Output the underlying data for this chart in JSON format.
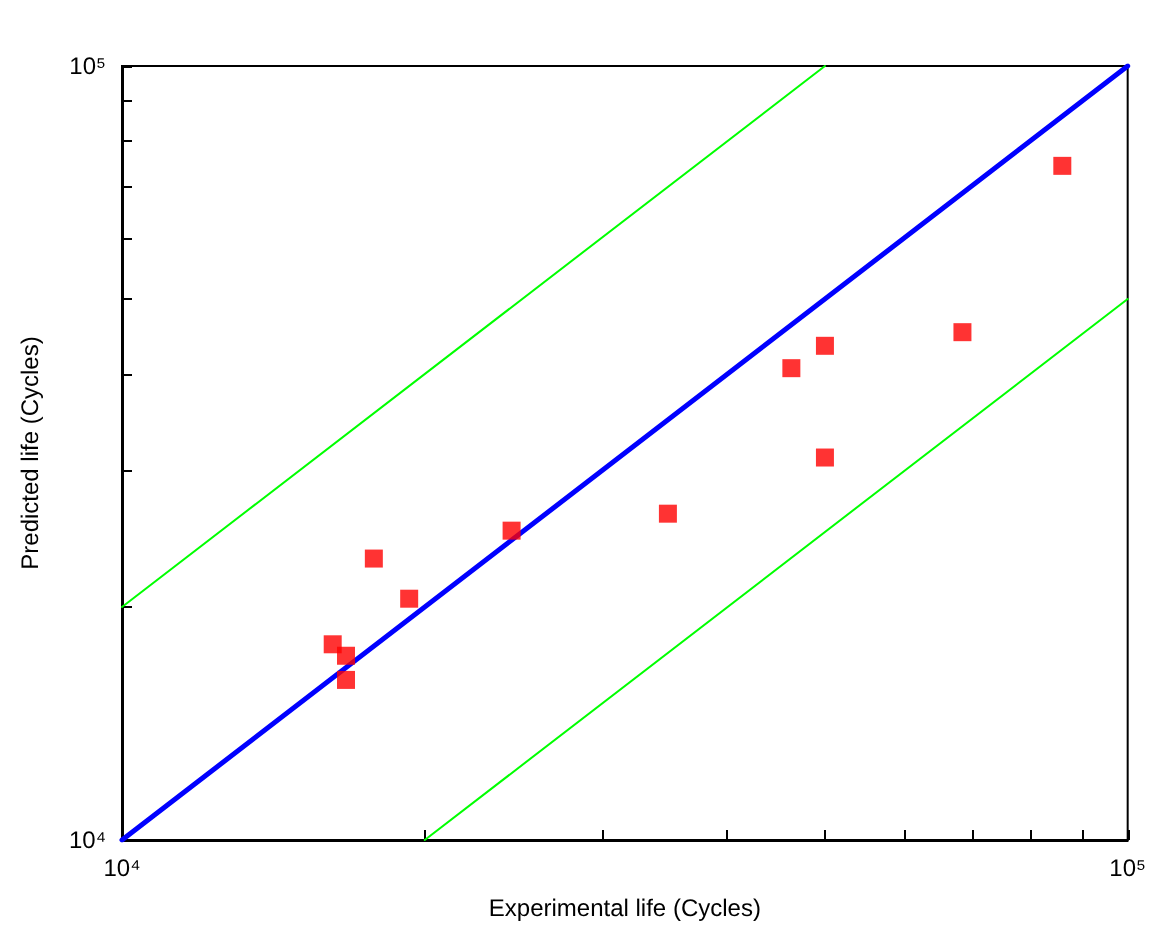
{
  "chart_data": {
    "type": "scatter",
    "xlabel": "Experimental life (Cycles)",
    "ylabel": "Predicted life (Cycles)",
    "log": "xy",
    "grid": false,
    "xlim": [
      10000,
      100000
    ],
    "ylim": [
      10000,
      100000
    ],
    "xticks": [
      {
        "value": 10000,
        "label": "10⁴"
      },
      {
        "value": 20000,
        "label": null
      },
      {
        "value": 30000,
        "label": null
      },
      {
        "value": 40000,
        "label": null
      },
      {
        "value": 50000,
        "label": null
      },
      {
        "value": 60000,
        "label": null
      },
      {
        "value": 70000,
        "label": null
      },
      {
        "value": 80000,
        "label": null
      },
      {
        "value": 90000,
        "label": null
      },
      {
        "value": 100000,
        "label": "10⁵"
      }
    ],
    "yticks": [
      {
        "value": 10000,
        "label": "10⁴"
      },
      {
        "value": 20000,
        "label": null
      },
      {
        "value": 30000,
        "label": null
      },
      {
        "value": 40000,
        "label": null
      },
      {
        "value": 50000,
        "label": null
      },
      {
        "value": 60000,
        "label": null
      },
      {
        "value": 70000,
        "label": null
      },
      {
        "value": 80000,
        "label": null
      },
      {
        "value": 90000,
        "label": null
      },
      {
        "value": 100000,
        "label": "10⁵"
      }
    ],
    "series": [
      {
        "type": "line",
        "color": "#0000ff",
        "marker": "none",
        "line_style": "solid",
        "x": [
          10000,
          100000
        ],
        "values": [
          10000,
          100000
        ]
      },
      {
        "type": "line",
        "color": "#00ff00",
        "marker": "none",
        "line_style": "solid",
        "x": [
          10000,
          50000
        ],
        "values": [
          20000,
          100000
        ]
      },
      {
        "type": "line",
        "color": "#00ff00",
        "marker": "none",
        "line_style": "solid",
        "x": [
          20000,
          100000
        ],
        "values": [
          10000,
          50000
        ]
      },
      {
        "type": "scatter",
        "color": "#ff0000",
        "marker": "square",
        "x": [
          16200,
          16700,
          16700,
          17800,
          19300,
          24400,
          34900,
          46300,
          50000,
          50000,
          68500,
          86100
        ],
        "values": [
          17900,
          17300,
          16100,
          23100,
          20500,
          25100,
          26400,
          40700,
          43500,
          31200,
          45300,
          74300
        ]
      }
    ]
  }
}
